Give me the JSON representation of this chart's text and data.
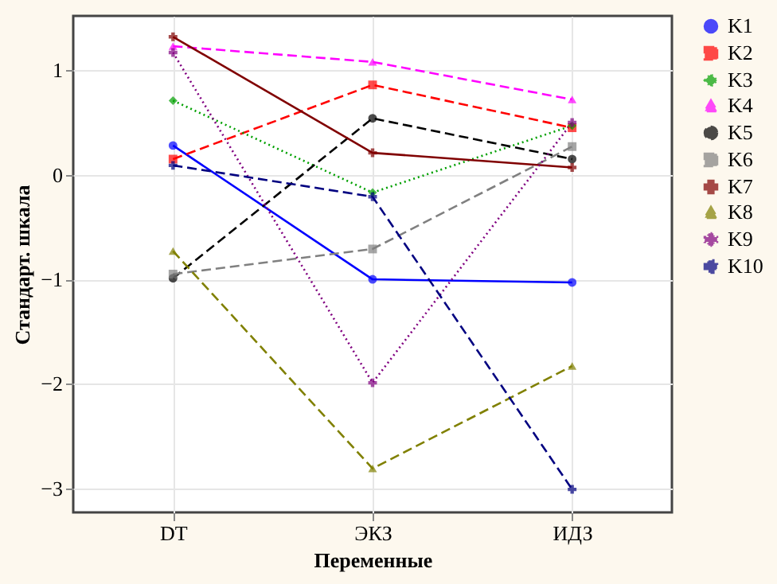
{
  "chart_data": {
    "type": "line",
    "xlabel": "Переменные",
    "ylabel": "Стандарт. шкала",
    "categories": [
      "DT",
      "ЭКЗ",
      "ИДЗ"
    ],
    "ylim": [
      -3.23,
      1.52
    ],
    "yticks": [
      -3,
      -2,
      -1,
      0,
      1
    ],
    "grid": true,
    "legend": "right",
    "series": [
      {
        "name": "K1",
        "color": "#0000ff",
        "marker": "circle",
        "line_style": "solid",
        "values": [
          0.28,
          -1.0,
          -1.03
        ]
      },
      {
        "name": "K2",
        "color": "#ff0000",
        "marker": "square",
        "line_style": "dashed",
        "values": [
          0.15,
          0.86,
          0.45
        ]
      },
      {
        "name": "K3",
        "color": "#00a000",
        "marker": "diamond",
        "line_style": "dotted",
        "values": [
          0.71,
          -0.17,
          0.47
        ]
      },
      {
        "name": "K4",
        "color": "#ff00ff",
        "marker": "triangle",
        "line_style": "dashed",
        "values": [
          1.23,
          1.08,
          0.72
        ]
      },
      {
        "name": "K5",
        "color": "#000000",
        "marker": "circle",
        "line_style": "dashed",
        "values": [
          -0.99,
          0.54,
          0.15
        ]
      },
      {
        "name": "K6",
        "color": "#808080",
        "marker": "square",
        "line_style": "dashed",
        "values": [
          -0.95,
          -0.71,
          0.27
        ]
      },
      {
        "name": "K7",
        "color": "#800000",
        "marker": "cross",
        "line_style": "solid",
        "values": [
          1.32,
          0.21,
          0.07
        ]
      },
      {
        "name": "K8",
        "color": "#808000",
        "marker": "triangle",
        "line_style": "dashed",
        "values": [
          -0.73,
          -2.81,
          -1.83
        ]
      },
      {
        "name": "K9",
        "color": "#800080",
        "marker": "cross",
        "line_style": "dotted",
        "values": [
          1.17,
          -1.99,
          0.5
        ]
      },
      {
        "name": "K10",
        "color": "#000080",
        "marker": "cross",
        "line_style": "dashed",
        "values": [
          0.09,
          -0.21,
          -3.01
        ]
      }
    ]
  }
}
